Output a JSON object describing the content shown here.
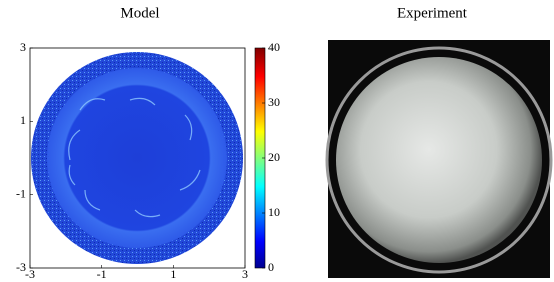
{
  "chart_data": [
    {
      "type": "heatmap",
      "title": "Model",
      "xlim": [
        -3,
        3
      ],
      "xticks": [
        -3,
        -1,
        1,
        3
      ],
      "ylim": [
        -3,
        3
      ],
      "yticks": [
        -3,
        -1,
        1,
        3
      ],
      "clim": [
        0,
        40
      ],
      "cticks": [
        0,
        10,
        20,
        30,
        40
      ]
    },
    {
      "type": "photo",
      "title": "Experiment"
    }
  ]
}
